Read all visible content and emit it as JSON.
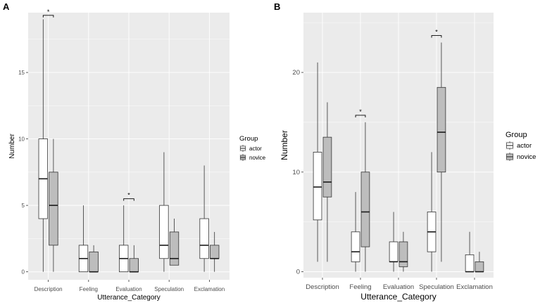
{
  "chart_data": [
    {
      "panel": "A",
      "type": "boxplot",
      "xlabel": "Utterance_Category",
      "ylabel": "Number",
      "ylim": [
        -0.6,
        19.5
      ],
      "yticks": [
        0,
        5,
        10,
        15
      ],
      "categories": [
        "Description",
        "Feeling",
        "Evaluation",
        "Speculation",
        "Exclamation"
      ],
      "legend": {
        "title": "Group",
        "entries": [
          "actor",
          "novice"
        ],
        "position": "right"
      },
      "colors": {
        "actor": "#ffffff",
        "novice": "#bdbdbd",
        "panel_bg": "#ebebeb",
        "grid": "#ffffff",
        "line": "#333333"
      },
      "series": [
        {
          "name": "actor",
          "boxes": [
            {
              "min": 0,
              "q1": 4,
              "median": 7,
              "q3": 10,
              "max": 19
            },
            {
              "min": 0,
              "q1": 0,
              "median": 1,
              "q3": 2,
              "max": 5
            },
            {
              "min": 0,
              "q1": 0,
              "median": 1,
              "q3": 2,
              "max": 5
            },
            {
              "min": 0,
              "q1": 1,
              "median": 2,
              "q3": 5,
              "max": 9
            },
            {
              "min": 0,
              "q1": 1,
              "median": 2,
              "q3": 4,
              "max": 8
            }
          ]
        },
        {
          "name": "novice",
          "boxes": [
            {
              "min": 0,
              "q1": 2,
              "median": 5,
              "q3": 7.5,
              "max": 10
            },
            {
              "min": 0,
              "q1": 0,
              "median": 0,
              "q3": 1.5,
              "max": 2
            },
            {
              "min": 0,
              "q1": 0,
              "median": 0,
              "q3": 1,
              "max": 2
            },
            {
              "min": 0.5,
              "q1": 0.5,
              "median": 1,
              "q3": 3,
              "max": 4
            },
            {
              "min": 0,
              "q1": 1,
              "median": 1,
              "q3": 2,
              "max": 3
            }
          ]
        }
      ],
      "significance": [
        {
          "category": "Description",
          "label": "*",
          "level": 19.3
        },
        {
          "category": "Evaluation",
          "label": "*",
          "level": 5.5
        }
      ]
    },
    {
      "panel": "B",
      "type": "boxplot",
      "xlabel": "Utterance_Category",
      "ylabel": "Number",
      "ylim": [
        -0.6,
        26
      ],
      "yticks": [
        0,
        10,
        20
      ],
      "categories": [
        "Description",
        "Feeling",
        "Evaluation",
        "Speculation",
        "Exclamation"
      ],
      "legend": {
        "title": "Group",
        "entries": [
          "actor",
          "novice"
        ],
        "position": "right"
      },
      "colors": {
        "actor": "#ffffff",
        "novice": "#bdbdbd",
        "panel_bg": "#ebebeb",
        "grid": "#ffffff",
        "line": "#333333"
      },
      "series": [
        {
          "name": "actor",
          "boxes": [
            {
              "min": 1,
              "q1": 5.2,
              "median": 8.5,
              "q3": 12,
              "max": 21
            },
            {
              "min": 0,
              "q1": 1,
              "median": 2,
              "q3": 4,
              "max": 8
            },
            {
              "min": 0,
              "q1": 1,
              "median": 1,
              "q3": 3,
              "max": 6
            },
            {
              "min": 0,
              "q1": 2,
              "median": 4,
              "q3": 6,
              "max": 12
            },
            {
              "min": 0,
              "q1": 0,
              "median": 0,
              "q3": 1.7,
              "max": 4
            }
          ]
        },
        {
          "name": "novice",
          "boxes": [
            {
              "min": 1,
              "q1": 7.5,
              "median": 9,
              "q3": 13.5,
              "max": 17
            },
            {
              "min": 0,
              "q1": 2.5,
              "median": 6,
              "q3": 10,
              "max": 15
            },
            {
              "min": 0,
              "q1": 0.5,
              "median": 1,
              "q3": 3,
              "max": 4
            },
            {
              "min": 1,
              "q1": 10,
              "median": 14,
              "q3": 18.5,
              "max": 23
            },
            {
              "min": 0,
              "q1": 0,
              "median": 0,
              "q3": 1,
              "max": 2
            }
          ]
        }
      ],
      "significance": [
        {
          "category": "Feeling",
          "label": "*",
          "level": 15.7
        },
        {
          "category": "Speculation",
          "label": "*",
          "level": 23.7
        }
      ]
    }
  ]
}
